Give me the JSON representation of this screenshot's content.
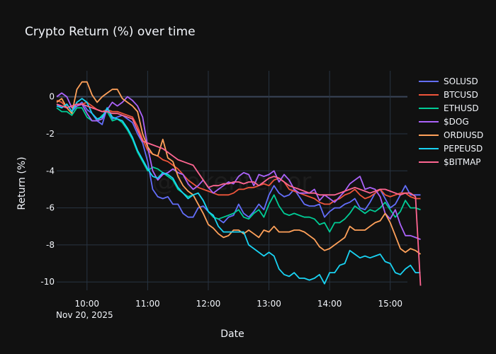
{
  "chart_data": {
    "type": "line",
    "title": "Crypto Return (%) over time",
    "xlabel": "Date",
    "ylabel": "Return (%)",
    "date_label": "Nov 20, 2025",
    "watermark": "@tokenterror",
    "x_ticks": [
      "10:00",
      "11:00",
      "12:00",
      "13:00",
      "14:00",
      "15:00"
    ],
    "x_tick_minutes": [
      600,
      660,
      720,
      780,
      840,
      900
    ],
    "x_range_minutes": [
      570,
      917
    ],
    "y_ticks": [
      0,
      -2,
      -4,
      -6,
      -8,
      -10
    ],
    "ylim": [
      -10.45,
      1.4
    ],
    "grid": true,
    "legend_position": "right",
    "x_start_minutes": 570,
    "x_step_minutes": 5,
    "series": [
      {
        "name": "SOLUSD",
        "color": "#636efa",
        "values": [
          -0.4,
          -0.6,
          -0.4,
          -0.8,
          -0.5,
          -0.3,
          -0.7,
          -0.9,
          -1.3,
          -1.5,
          -0.6,
          -1.2,
          -1.1,
          -1.0,
          -1.2,
          -1.4,
          -2.0,
          -2.5,
          -3.5,
          -5.0,
          -5.4,
          -5.5,
          -5.4,
          -5.8,
          -5.8,
          -6.3,
          -6.5,
          -6.5,
          -6.0,
          -5.9,
          -6.2,
          -6.5,
          -6.6,
          -6.8,
          -6.5,
          -6.4,
          -5.8,
          -6.3,
          -6.5,
          -6.2,
          -5.8,
          -6.1,
          -5.3,
          -4.8,
          -5.2,
          -5.4,
          -5.3,
          -5.0,
          -5.4,
          -5.8,
          -5.9,
          -5.9,
          -5.8,
          -6.5,
          -6.2,
          -6.0,
          -6.0,
          -5.8,
          -5.7,
          -5.5,
          -6.0,
          -6.1,
          -5.7,
          -5.2,
          -5.0,
          -5.5,
          -6.0,
          -5.8,
          -5.3,
          -4.8,
          -5.3,
          -5.3,
          -5.3
        ]
      },
      {
        "name": "BTCUSD",
        "color": "#ef553b",
        "values": [
          -0.2,
          -0.3,
          -0.6,
          -0.5,
          -0.5,
          -0.4,
          -0.3,
          -0.5,
          -0.7,
          -0.8,
          -0.7,
          -0.8,
          -0.8,
          -0.9,
          -1.0,
          -1.1,
          -1.6,
          -2.3,
          -2.9,
          -3.1,
          -3.2,
          -3.4,
          -3.5,
          -3.7,
          -3.9,
          -4.2,
          -4.5,
          -4.7,
          -4.9,
          -5.0,
          -5.1,
          -5.2,
          -5.3,
          -5.3,
          -5.3,
          -5.2,
          -5.0,
          -5.0,
          -4.9,
          -4.9,
          -4.8,
          -4.7,
          -4.8,
          -4.5,
          -4.4,
          -4.6,
          -5.0,
          -5.1,
          -5.2,
          -5.3,
          -5.4,
          -5.5,
          -5.7,
          -5.8,
          -5.8,
          -5.6,
          -5.5,
          -5.3,
          -5.2,
          -5.0,
          -5.3,
          -5.5,
          -5.4,
          -5.2,
          -5.0,
          -5.3,
          -5.4,
          -5.3,
          -5.2,
          -5.2,
          -5.4,
          -5.5,
          -5.5
        ]
      },
      {
        "name": "ETHUSD",
        "color": "#00cc96",
        "values": [
          -0.6,
          -0.8,
          -0.8,
          -1.0,
          -0.6,
          -0.6,
          -1.1,
          -1.3,
          -1.3,
          -1.0,
          -0.8,
          -1.3,
          -1.2,
          -1.4,
          -1.8,
          -2.3,
          -3.0,
          -3.5,
          -4.0,
          -3.8,
          -3.9,
          -4.1,
          -4.3,
          -4.5,
          -5.0,
          -5.2,
          -5.4,
          -5.3,
          -5.2,
          -5.6,
          -6.2,
          -6.5,
          -6.6,
          -6.5,
          -6.4,
          -6.3,
          -6.1,
          -6.5,
          -6.6,
          -6.3,
          -6.1,
          -6.5,
          -5.8,
          -5.3,
          -5.9,
          -6.3,
          -6.4,
          -6.3,
          -6.4,
          -6.5,
          -6.5,
          -6.6,
          -6.9,
          -6.8,
          -7.3,
          -6.8,
          -6.8,
          -6.6,
          -6.3,
          -5.9,
          -6.1,
          -6.3,
          -6.1,
          -6.2,
          -6.0,
          -5.7,
          -6.1,
          -6.5,
          -6.2,
          -5.6,
          -6.0,
          -6.0,
          -6.1
        ]
      },
      {
        "name": "$DOG",
        "color": "#ab63fa",
        "values": [
          0.0,
          0.2,
          0.0,
          -0.6,
          -0.5,
          -0.4,
          -0.9,
          -1.3,
          -1.3,
          -1.2,
          -0.7,
          -0.3,
          -0.5,
          -0.3,
          0.0,
          -0.2,
          -0.5,
          -1.1,
          -2.7,
          -4.0,
          -4.5,
          -4.2,
          -4.1,
          -3.9,
          -4.1,
          -4.2,
          -4.7,
          -5.0,
          -4.8,
          -4.5,
          -4.9,
          -5.2,
          -5.0,
          -4.8,
          -4.6,
          -4.7,
          -4.3,
          -4.1,
          -4.2,
          -4.8,
          -4.2,
          -4.3,
          -4.2,
          -4.0,
          -4.6,
          -4.2,
          -4.5,
          -5.0,
          -5.2,
          -5.2,
          -5.2,
          -5.0,
          -5.6,
          -5.3,
          -5.5,
          -5.7,
          -5.4,
          -5.1,
          -4.7,
          -4.5,
          -4.3,
          -5.0,
          -4.9,
          -5.0,
          -5.4,
          -6.3,
          -6.6,
          -6.1,
          -6.9,
          -7.5,
          -7.5,
          -7.6,
          -7.7
        ]
      },
      {
        "name": "ORDIUSD",
        "color": "#ffa15a",
        "values": [
          -0.3,
          -0.1,
          -0.6,
          -0.9,
          0.4,
          0.8,
          0.8,
          0.1,
          -0.3,
          0.0,
          0.2,
          0.4,
          0.4,
          -0.1,
          -0.3,
          -0.5,
          -0.8,
          -2.0,
          -2.7,
          -3.1,
          -3.2,
          -2.3,
          -3.3,
          -3.5,
          -4.3,
          -4.8,
          -5.1,
          -5.3,
          -5.8,
          -6.3,
          -6.9,
          -7.1,
          -7.4,
          -7.6,
          -7.5,
          -7.2,
          -7.2,
          -7.4,
          -7.2,
          -7.4,
          -7.6,
          -7.2,
          -7.3,
          -7.0,
          -7.3,
          -7.3,
          -7.3,
          -7.2,
          -7.2,
          -7.3,
          -7.5,
          -7.7,
          -8.1,
          -8.3,
          -8.2,
          -8.0,
          -7.8,
          -7.6,
          -7.0,
          -7.2,
          -7.2,
          -7.2,
          -7.0,
          -6.8,
          -6.7,
          -6.3,
          -6.8,
          -7.5,
          -8.2,
          -8.4,
          -8.2,
          -8.3,
          -8.5
        ]
      },
      {
        "name": "PEPEUSD",
        "color": "#19d3f3",
        "values": [
          -0.5,
          -0.6,
          -0.4,
          -0.8,
          -0.3,
          -0.1,
          -0.3,
          -0.9,
          -1.2,
          -1.1,
          -0.6,
          -1.1,
          -1.2,
          -1.3,
          -1.7,
          -2.2,
          -2.9,
          -3.4,
          -3.9,
          -4.3,
          -4.4,
          -4.1,
          -4.2,
          -4.4,
          -4.9,
          -5.2,
          -5.5,
          -5.3,
          -5.2,
          -5.6,
          -6.2,
          -6.4,
          -7.0,
          -7.3,
          -7.3,
          -7.3,
          -7.3,
          -7.3,
          -8.0,
          -8.2,
          -8.4,
          -8.6,
          -8.4,
          -8.6,
          -9.3,
          -9.6,
          -9.7,
          -9.5,
          -9.8,
          -9.8,
          -9.9,
          -9.8,
          -9.6,
          -10.1,
          -9.5,
          -9.5,
          -9.1,
          -9.0,
          -8.3,
          -8.5,
          -8.7,
          -8.6,
          -8.7,
          -8.6,
          -8.5,
          -8.9,
          -9.0,
          -9.5,
          -9.6,
          -9.3,
          -9.1,
          -9.5,
          -9.5
        ]
      },
      {
        "name": "$BITMAP",
        "color": "#ff6692",
        "values": [
          -0.4,
          -0.5,
          -0.6,
          -0.5,
          -0.4,
          -0.4,
          -0.5,
          -0.6,
          -0.7,
          -0.8,
          -0.8,
          -0.9,
          -0.9,
          -1.0,
          -1.1,
          -1.2,
          -1.8,
          -2.4,
          -2.5,
          -2.6,
          -2.7,
          -2.8,
          -3.0,
          -3.2,
          -3.4,
          -3.5,
          -3.6,
          -3.7,
          -4.1,
          -4.5,
          -4.9,
          -4.8,
          -4.8,
          -4.7,
          -4.7,
          -4.6,
          -4.6,
          -4.7,
          -4.6,
          -4.6,
          -4.8,
          -4.6,
          -4.4,
          -4.3,
          -4.4,
          -4.6,
          -4.8,
          -4.9,
          -5.0,
          -5.1,
          -5.2,
          -5.2,
          -5.3,
          -5.3,
          -5.3,
          -5.3,
          -5.2,
          -5.1,
          -5.0,
          -4.9,
          -5.0,
          -5.1,
          -5.2,
          -5.1,
          -5.0,
          -5.0,
          -5.1,
          -5.2,
          -5.3,
          -5.2,
          -5.2,
          -5.4,
          -10.2
        ]
      }
    ]
  }
}
